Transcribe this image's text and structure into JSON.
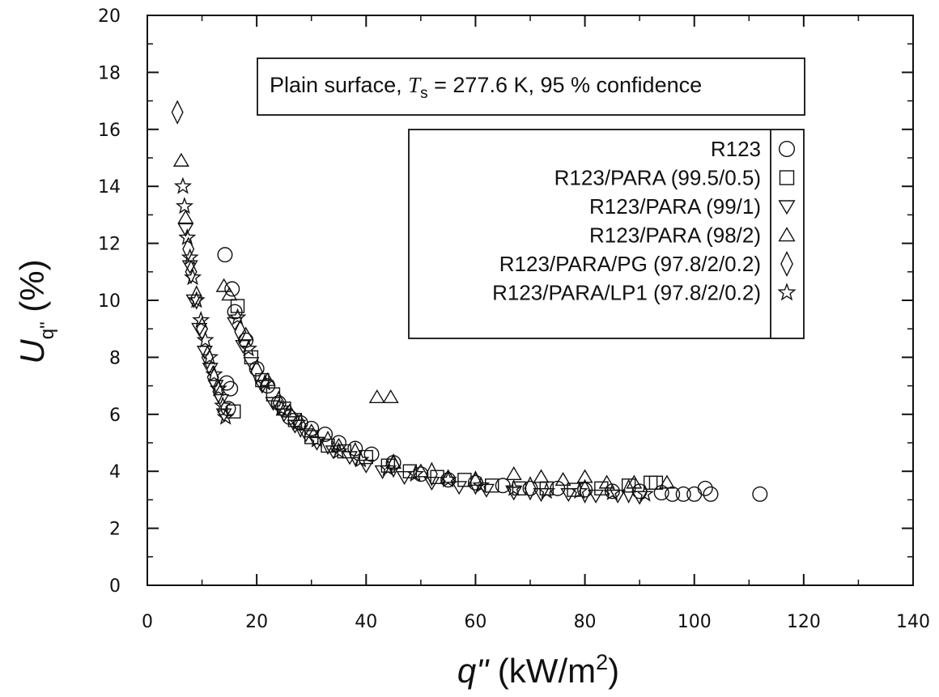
{
  "chart_data": {
    "type": "scatter",
    "title": "",
    "annotation": {
      "prefix": "Plain surface, ",
      "var": "T",
      "sub": "s",
      "suffix": " = 277.6 K, 95 % confidence"
    },
    "xlabel": {
      "var": "q\"",
      "rest": " (kW/m",
      "sup": "2",
      "close": ")"
    },
    "ylabel": {
      "var": "U",
      "sub": "q\"",
      "rest": " (%)"
    },
    "xlim": [
      0,
      140
    ],
    "ylim": [
      0,
      20
    ],
    "x_ticks": [
      0,
      20,
      40,
      60,
      80,
      100,
      120,
      140
    ],
    "y_ticks": [
      0,
      2,
      4,
      6,
      8,
      10,
      12,
      14,
      16,
      18,
      20
    ],
    "grid": false,
    "legend_position": "top-right",
    "series": [
      {
        "name": "R123",
        "marker": "circle",
        "points": [
          [
            14.2,
            11.6
          ],
          [
            15.5,
            10.4
          ],
          [
            14.5,
            7.1
          ],
          [
            15.2,
            6.9
          ],
          [
            14.8,
            6.2
          ],
          [
            16.0,
            9.6
          ],
          [
            18.0,
            8.6
          ],
          [
            20.0,
            7.6
          ],
          [
            22.0,
            7.0
          ],
          [
            24.0,
            6.4
          ],
          [
            26.0,
            5.9
          ],
          [
            28.0,
            5.7
          ],
          [
            30.0,
            5.5
          ],
          [
            32.5,
            5.3
          ],
          [
            35.0,
            5.0
          ],
          [
            38.0,
            4.8
          ],
          [
            41.0,
            4.6
          ],
          [
            45.0,
            4.3
          ],
          [
            50.0,
            3.9
          ],
          [
            55.0,
            3.7
          ],
          [
            60.0,
            3.6
          ],
          [
            65.0,
            3.5
          ],
          [
            70.0,
            3.4
          ],
          [
            75.0,
            3.4
          ],
          [
            80.0,
            3.35
          ],
          [
            85.0,
            3.3
          ],
          [
            90.0,
            3.3
          ],
          [
            94.0,
            3.25
          ],
          [
            96.0,
            3.2
          ],
          [
            98.0,
            3.2
          ],
          [
            100.0,
            3.2
          ],
          [
            102.0,
            3.4
          ],
          [
            103.0,
            3.2
          ],
          [
            112.0,
            3.2
          ]
        ]
      },
      {
        "name": "R123/PARA (99.5/0.5)",
        "marker": "square",
        "points": [
          [
            15.8,
            6.1
          ],
          [
            16.5,
            9.8
          ],
          [
            19.0,
            8.0
          ],
          [
            21.0,
            7.2
          ],
          [
            23.0,
            6.7
          ],
          [
            25.0,
            6.2
          ],
          [
            27.0,
            5.8
          ],
          [
            30.0,
            5.2
          ],
          [
            33.0,
            4.9
          ],
          [
            36.0,
            4.7
          ],
          [
            40.0,
            4.5
          ],
          [
            44.0,
            4.2
          ],
          [
            48.0,
            4.0
          ],
          [
            53.0,
            3.8
          ],
          [
            58.0,
            3.7
          ],
          [
            63.0,
            3.5
          ],
          [
            68.0,
            3.4
          ],
          [
            73.0,
            3.4
          ],
          [
            78.0,
            3.35
          ],
          [
            83.0,
            3.4
          ],
          [
            88.0,
            3.5
          ],
          [
            92.0,
            3.6
          ],
          [
            93.0,
            3.6
          ]
        ]
      },
      {
        "name": "R123/PARA (99/1)",
        "marker": "triangle-down",
        "points": [
          [
            7.0,
            12.5
          ],
          [
            7.8,
            11.2
          ],
          [
            8.5,
            10.0
          ],
          [
            9.5,
            9.0
          ],
          [
            10.5,
            8.2
          ],
          [
            11.5,
            7.6
          ],
          [
            12.5,
            7.0
          ],
          [
            13.5,
            6.5
          ],
          [
            14.0,
            6.0
          ],
          [
            16.0,
            9.2
          ],
          [
            17.5,
            8.4
          ],
          [
            19.0,
            7.8
          ],
          [
            21.0,
            7.0
          ],
          [
            23.0,
            6.4
          ],
          [
            25.0,
            6.0
          ],
          [
            27.0,
            5.6
          ],
          [
            29.0,
            5.3
          ],
          [
            31.0,
            5.0
          ],
          [
            34.0,
            4.7
          ],
          [
            37.0,
            4.5
          ],
          [
            40.0,
            4.2
          ],
          [
            43.0,
            4.0
          ],
          [
            47.0,
            3.8
          ],
          [
            52.0,
            3.6
          ],
          [
            57.0,
            3.45
          ],
          [
            62.0,
            3.35
          ],
          [
            67.0,
            3.25
          ],
          [
            72.0,
            3.2
          ],
          [
            77.0,
            3.2
          ],
          [
            82.0,
            3.15
          ],
          [
            86.0,
            3.15
          ],
          [
            90.0,
            3.1
          ]
        ]
      },
      {
        "name": "R123/PARA (98/2)",
        "marker": "triangle-up",
        "points": [
          [
            6.2,
            14.9
          ],
          [
            7.0,
            12.9
          ],
          [
            14.0,
            10.5
          ],
          [
            15.0,
            10.2
          ],
          [
            18.0,
            8.8
          ],
          [
            22.0,
            7.2
          ],
          [
            26.0,
            6.1
          ],
          [
            30.0,
            5.4
          ],
          [
            35.0,
            4.9
          ],
          [
            42.0,
            6.6
          ],
          [
            44.5,
            6.6
          ],
          [
            45.0,
            4.3
          ],
          [
            50.0,
            4.0
          ],
          [
            55.0,
            3.8
          ],
          [
            60.0,
            3.7
          ],
          [
            67.0,
            3.9
          ],
          [
            72.0,
            3.8
          ],
          [
            76.0,
            3.7
          ],
          [
            80.0,
            3.8
          ],
          [
            84.0,
            3.6
          ],
          [
            89.0,
            3.6
          ],
          [
            95.0,
            3.6
          ]
        ]
      },
      {
        "name": "R123/PARA/PG (97.8/2/0.2)",
        "marker": "diamond",
        "points": [
          [
            5.5,
            16.6
          ],
          [
            7.5,
            11.8
          ],
          [
            8.0,
            11.0
          ],
          [
            9.0,
            10.1
          ],
          [
            10.0,
            9.0
          ],
          [
            11.0,
            8.0
          ],
          [
            12.0,
            7.3
          ],
          [
            13.0,
            6.8
          ],
          [
            17.0,
            8.9
          ],
          [
            20.0,
            7.5
          ],
          [
            24.0,
            6.4
          ],
          [
            28.0,
            5.6
          ],
          [
            33.0,
            5.0
          ],
          [
            38.0,
            4.6
          ],
          [
            45.0,
            4.2
          ],
          [
            52.0,
            3.9
          ],
          [
            60.0,
            3.6
          ],
          [
            70.0,
            3.4
          ],
          [
            80.0,
            3.3
          ],
          [
            88.0,
            3.3
          ]
        ]
      },
      {
        "name": "R123/PARA/LP1 (97.8/2/0.2)",
        "marker": "star",
        "points": [
          [
            6.5,
            14.0
          ],
          [
            6.8,
            13.3
          ],
          [
            7.3,
            12.2
          ],
          [
            7.8,
            11.5
          ],
          [
            8.3,
            10.8
          ],
          [
            9.0,
            10.0
          ],
          [
            9.8,
            9.3
          ],
          [
            10.6,
            8.6
          ],
          [
            11.4,
            8.0
          ],
          [
            12.2,
            7.4
          ],
          [
            13.0,
            6.9
          ],
          [
            13.8,
            6.3
          ],
          [
            14.3,
            5.9
          ],
          [
            16.5,
            9.4
          ],
          [
            18.5,
            8.3
          ],
          [
            21.5,
            7.1
          ],
          [
            24.5,
            6.2
          ],
          [
            27.5,
            5.7
          ],
          [
            31.0,
            5.1
          ],
          [
            35.0,
            4.7
          ],
          [
            39.0,
            4.4
          ],
          [
            44.0,
            4.1
          ],
          [
            49.0,
            3.9
          ],
          [
            55.0,
            3.7
          ],
          [
            61.0,
            3.5
          ],
          [
            67.0,
            3.4
          ],
          [
            73.0,
            3.3
          ],
          [
            79.0,
            3.3
          ],
          [
            85.0,
            3.25
          ],
          [
            91.0,
            3.2
          ]
        ]
      }
    ]
  }
}
